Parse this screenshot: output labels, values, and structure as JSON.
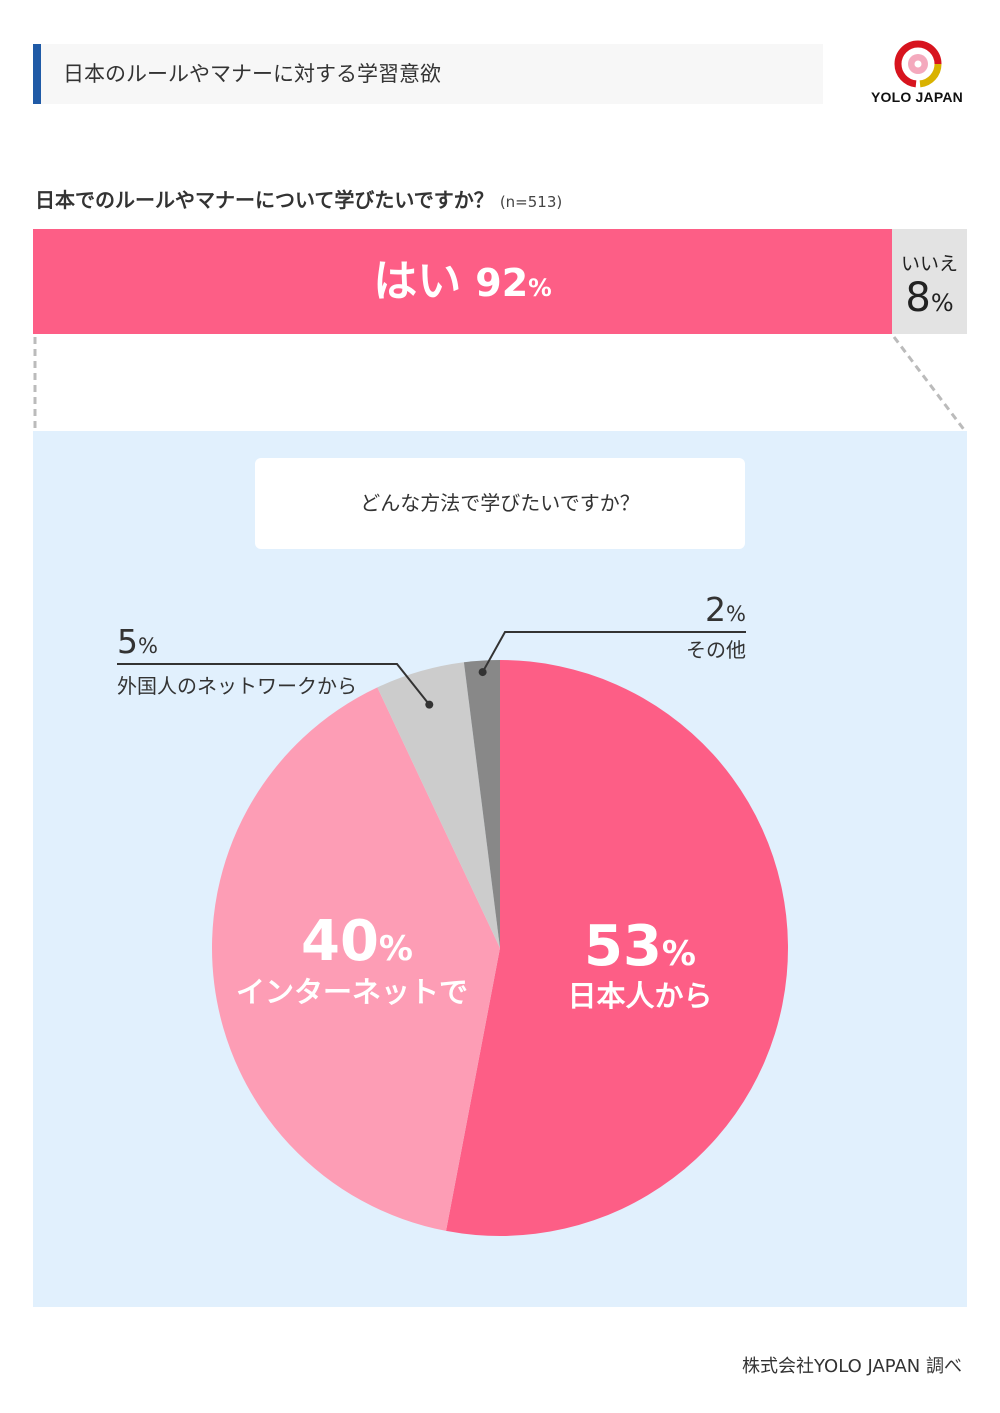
{
  "header": {
    "title": "日本のルールやマナーに対する学習意欲"
  },
  "logo": {
    "text": "YOLO JAPAN",
    "icon": "sakura-emblem-icon",
    "colors": [
      "#d7141e",
      "#d9b200",
      "#f4a9bd"
    ]
  },
  "question": {
    "text": "日本でのルールやマナーについて学びたいですか？",
    "n": "(n=513)"
  },
  "sub_question": "どんな方法で学びたいですか？",
  "footer": "株式会社YOLO JAPAN 調べ",
  "colors": {
    "yes": "#fd5e86",
    "no": "#e3e3e3",
    "panel": "#e1f0fd",
    "japanese": "#fd5e86",
    "internet": "#fd9db5",
    "network": "#cccccc",
    "other": "#888888"
  },
  "chart_data": [
    {
      "type": "bar",
      "categories": [
        "はい",
        "いいえ"
      ],
      "values": [
        92,
        8
      ],
      "unit": "%",
      "labels": {
        "yes": "はい",
        "no": "いいえ"
      },
      "display": {
        "yes": "92",
        "no": "8"
      }
    },
    {
      "type": "pie",
      "labels": [
        "日本人から",
        "インターネットで",
        "外国人のネットワークから",
        "その他"
      ],
      "values": [
        53,
        40,
        5,
        2
      ],
      "unit": "%",
      "display": [
        "53",
        "40",
        "5",
        "2"
      ]
    }
  ]
}
